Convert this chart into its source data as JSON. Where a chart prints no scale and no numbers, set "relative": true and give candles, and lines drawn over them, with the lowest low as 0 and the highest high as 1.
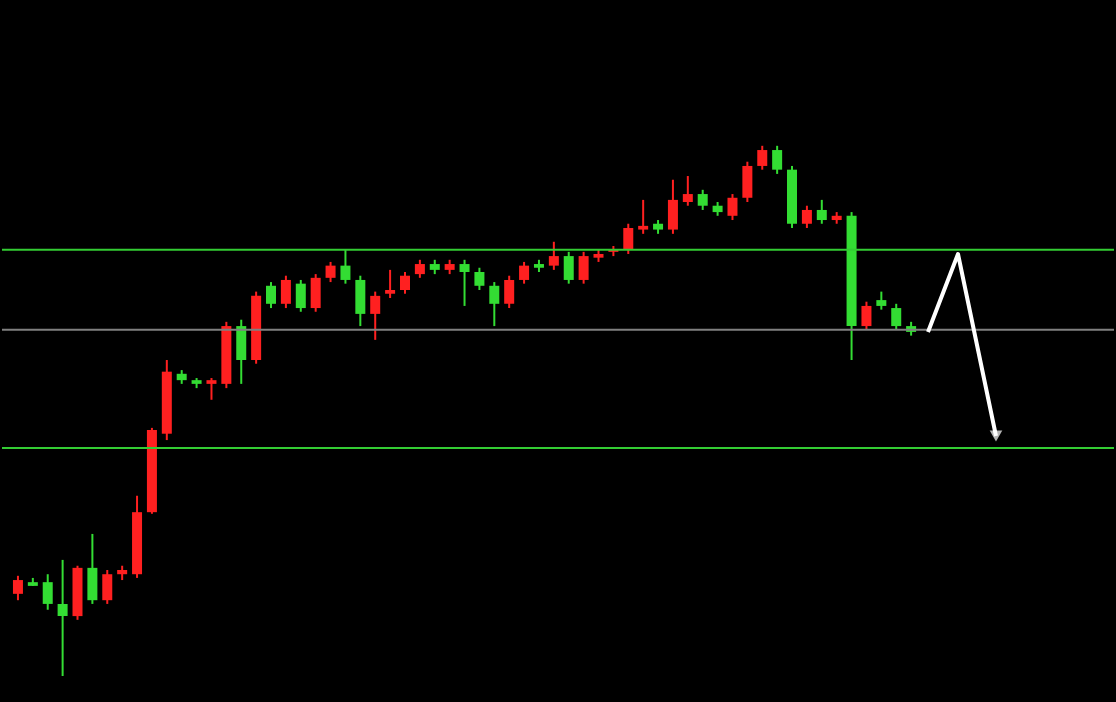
{
  "chart_data": {
    "type": "candlestick",
    "relative": true,
    "categories": [
      null,
      null,
      null,
      null,
      null,
      null,
      null,
      null,
      null,
      null,
      null,
      null,
      null,
      null,
      null,
      null,
      null,
      null,
      null,
      null,
      null,
      null,
      null,
      null,
      null,
      null,
      null,
      null,
      null,
      null,
      null,
      null,
      null,
      null,
      null,
      null,
      null,
      null,
      null,
      null,
      null,
      null,
      null,
      null,
      null,
      null,
      null,
      null,
      null,
      null,
      null,
      null,
      null,
      null,
      null,
      null,
      null,
      null,
      null,
      null,
      null
    ],
    "ohlc": [
      [
        0.155,
        0.189,
        0.143,
        0.181
      ],
      [
        0.177,
        0.185,
        0.17,
        0.17
      ],
      [
        0.177,
        0.192,
        0.125,
        0.136
      ],
      [
        0.136,
        0.219,
        0,
        0.113
      ],
      [
        0.113,
        0.208,
        0.106,
        0.204
      ],
      [
        0.204,
        0.268,
        0.136,
        0.143
      ],
      [
        0.143,
        0.2,
        0.136,
        0.192
      ],
      [
        0.192,
        0.208,
        0.181,
        0.2
      ],
      [
        0.192,
        0.34,
        0.185,
        0.309
      ],
      [
        0.309,
        0.468,
        0.306,
        0.464
      ],
      [
        0.457,
        0.596,
        0.445,
        0.574
      ],
      [
        0.57,
        0.577,
        0.551,
        0.558
      ],
      [
        0.558,
        0.562,
        0.543,
        0.551
      ],
      [
        0.551,
        0.562,
        0.521,
        0.558
      ],
      [
        0.551,
        0.668,
        0.543,
        0.66
      ],
      [
        0.66,
        0.672,
        0.551,
        0.596
      ],
      [
        0.596,
        0.725,
        0.589,
        0.717
      ],
      [
        0.736,
        0.743,
        0.694,
        0.702
      ],
      [
        0.702,
        0.755,
        0.694,
        0.747
      ],
      [
        0.74,
        0.747,
        0.687,
        0.694
      ],
      [
        0.694,
        0.758,
        0.687,
        0.751
      ],
      [
        0.751,
        0.781,
        0.743,
        0.774
      ],
      [
        0.774,
        0.804,
        0.74,
        0.747
      ],
      [
        0.747,
        0.755,
        0.66,
        0.683
      ],
      [
        0.683,
        0.725,
        0.634,
        0.717
      ],
      [
        0.721,
        0.766,
        0.713,
        0.728
      ],
      [
        0.728,
        0.762,
        0.721,
        0.755
      ],
      [
        0.758,
        0.785,
        0.751,
        0.777
      ],
      [
        0.777,
        0.785,
        0.758,
        0.766
      ],
      [
        0.766,
        0.785,
        0.758,
        0.777
      ],
      [
        0.777,
        0.785,
        0.698,
        0.762
      ],
      [
        0.762,
        0.77,
        0.728,
        0.736
      ],
      [
        0.736,
        0.743,
        0.66,
        0.702
      ],
      [
        0.702,
        0.755,
        0.694,
        0.747
      ],
      [
        0.747,
        0.781,
        0.74,
        0.774
      ],
      [
        0.777,
        0.785,
        0.762,
        0.77
      ],
      [
        0.774,
        0.819,
        0.766,
        0.792
      ],
      [
        0.792,
        0.8,
        0.74,
        0.747
      ],
      [
        0.747,
        0.8,
        0.74,
        0.792
      ],
      [
        0.789,
        0.804,
        0.781,
        0.796
      ],
      [
        0.8,
        0.811,
        0.792,
        0.804
      ],
      [
        0.804,
        0.853,
        0.796,
        0.845
      ],
      [
        0.842,
        0.898,
        0.834,
        0.849
      ],
      [
        0.853,
        0.86,
        0.834,
        0.842
      ],
      [
        0.842,
        0.936,
        0.834,
        0.898
      ],
      [
        0.894,
        0.943,
        0.887,
        0.909
      ],
      [
        0.909,
        0.917,
        0.879,
        0.887
      ],
      [
        0.887,
        0.894,
        0.868,
        0.875
      ],
      [
        0.868,
        0.909,
        0.86,
        0.902
      ],
      [
        0.902,
        0.97,
        0.894,
        0.962
      ],
      [
        0.962,
        1,
        0.955,
        0.992
      ],
      [
        0.992,
        1,
        0.947,
        0.955
      ],
      [
        0.955,
        0.962,
        0.845,
        0.853
      ],
      [
        0.853,
        0.887,
        0.845,
        0.879
      ],
      [
        0.879,
        0.898,
        0.853,
        0.86
      ],
      [
        0.86,
        0.875,
        0.853,
        0.868
      ],
      [
        0.868,
        0.875,
        0.596,
        0.66
      ],
      [
        0.66,
        0.706,
        0.653,
        0.698
      ],
      [
        0.709,
        0.725,
        0.691,
        0.698
      ],
      [
        0.694,
        0.702,
        0.653,
        0.66
      ],
      [
        0.66,
        0.668,
        0.642,
        0.649
      ]
    ],
    "ref_lines": [
      {
        "axis": "y",
        "value": 0.804,
        "color": "#33cc33"
      },
      {
        "axis": "y",
        "value": 0.653,
        "color": "#808080"
      },
      {
        "axis": "y",
        "value": 0.43,
        "color": "#33cc33"
      }
    ]
  }
}
